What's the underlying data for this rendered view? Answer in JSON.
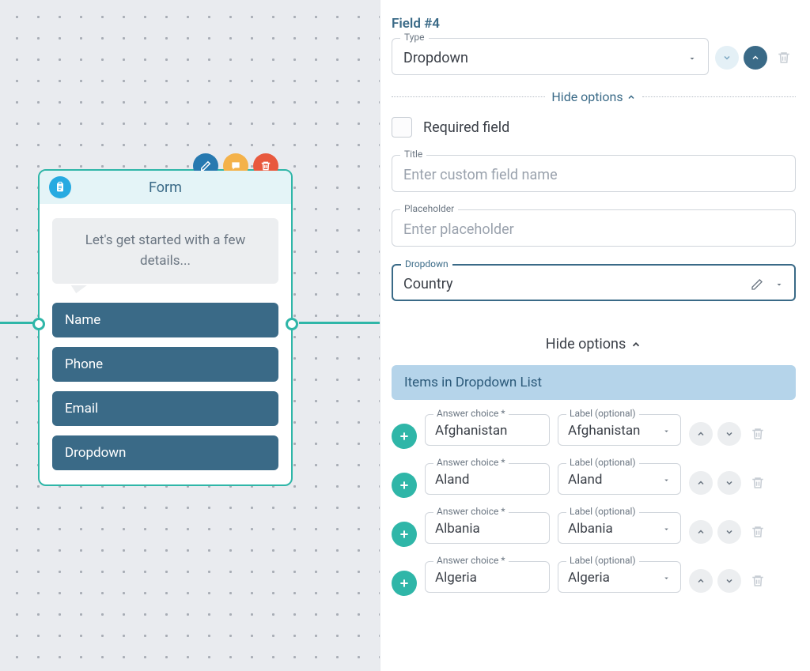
{
  "canvas": {
    "card_title": "Form",
    "bubble_text": "Let's get started with a few details...",
    "fields": [
      "Name",
      "Phone",
      "Email",
      "Dropdown"
    ]
  },
  "panel": {
    "field_heading": "Field #4",
    "type_label": "Type",
    "type_value": "Dropdown",
    "hide_options_top": "Hide options",
    "required_label": "Required field",
    "title_label": "Title",
    "title_placeholder": "Enter custom field name",
    "placeholder_label": "Placeholder",
    "placeholder_placeholder": "Enter placeholder",
    "dropdown_label": "Dropdown",
    "dropdown_value": "Country",
    "hide_options_lower": "Hide options",
    "items_header": "Items in Dropdown List",
    "answer_label": "Answer choice *",
    "label_label": "Label (optional)",
    "items": [
      {
        "answer": "Afghanistan",
        "label": "Afghanistan"
      },
      {
        "answer": "Aland",
        "label": "Aland"
      },
      {
        "answer": "Albania",
        "label": "Albania"
      },
      {
        "answer": "Algeria",
        "label": "Algeria"
      }
    ]
  },
  "colors": {
    "teal": "#2fb6a8",
    "slate": "#3a6a87",
    "blue_header": "#b5d4ea",
    "canvas_bg": "#e9ebef"
  }
}
